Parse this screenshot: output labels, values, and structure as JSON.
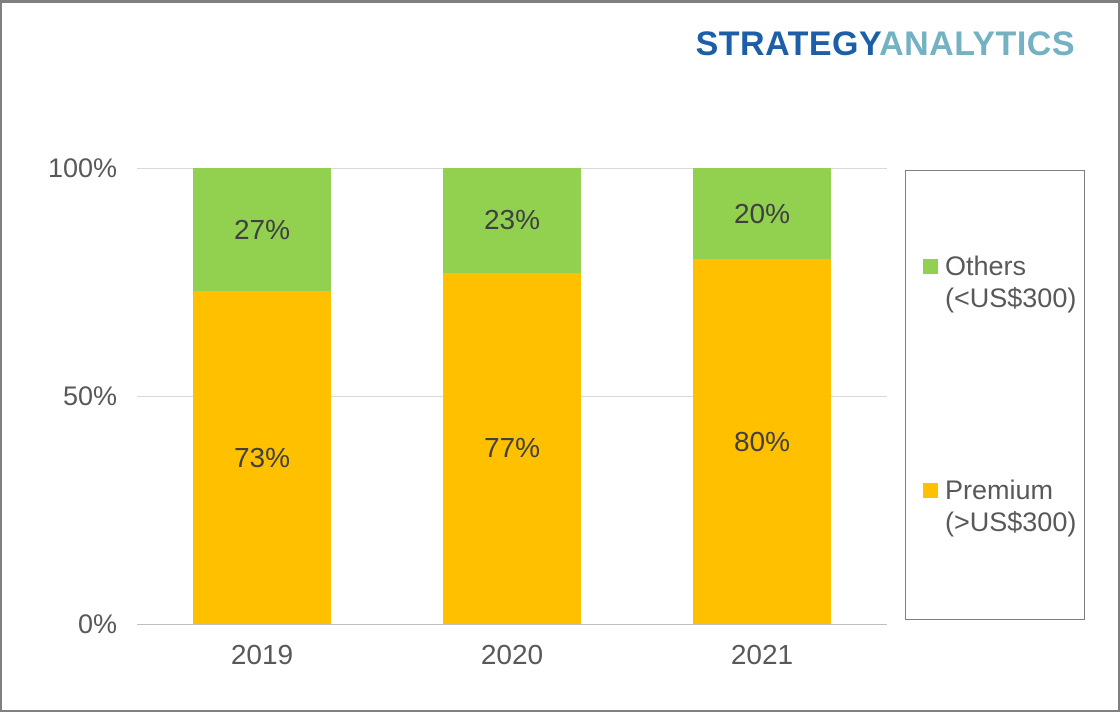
{
  "logo": {
    "part1": "STRATEGY",
    "part2": "ANALYTICS",
    "part1_color": "#1C5FA8",
    "part2_color": "#74B1C2"
  },
  "chart_data": {
    "type": "bar",
    "stacked": true,
    "orientation": "vertical",
    "categories": [
      "2019",
      "2020",
      "2021"
    ],
    "series": [
      {
        "name": "Premium (>US$300)",
        "color": "#FFC000",
        "values": [
          73,
          77,
          80
        ]
      },
      {
        "name": "Others (<US$300)",
        "color": "#92D050",
        "values": [
          27,
          23,
          20
        ]
      }
    ],
    "data_label_suffix": "%",
    "data_label_color": "#404040",
    "ylim": [
      0,
      100
    ],
    "grid": true,
    "gridline_color": "#D9D9D9",
    "legend_position": "right"
  },
  "axis": {
    "y_ticks": [
      {
        "label": "100%",
        "value": 100
      },
      {
        "label": "50%",
        "value": 50
      },
      {
        "label": "0%",
        "value": 0
      }
    ],
    "x_labels": [
      "2019",
      "2020",
      "2021"
    ]
  },
  "legend": {
    "items": [
      {
        "line1": "Others",
        "line2": "(<US$300)",
        "color": "#92D050",
        "series": "Others (<US$300)"
      },
      {
        "line1": "Premium",
        "line2": "(>US$300)",
        "color": "#FFC000",
        "series": "Premium (>US$300)"
      }
    ]
  }
}
